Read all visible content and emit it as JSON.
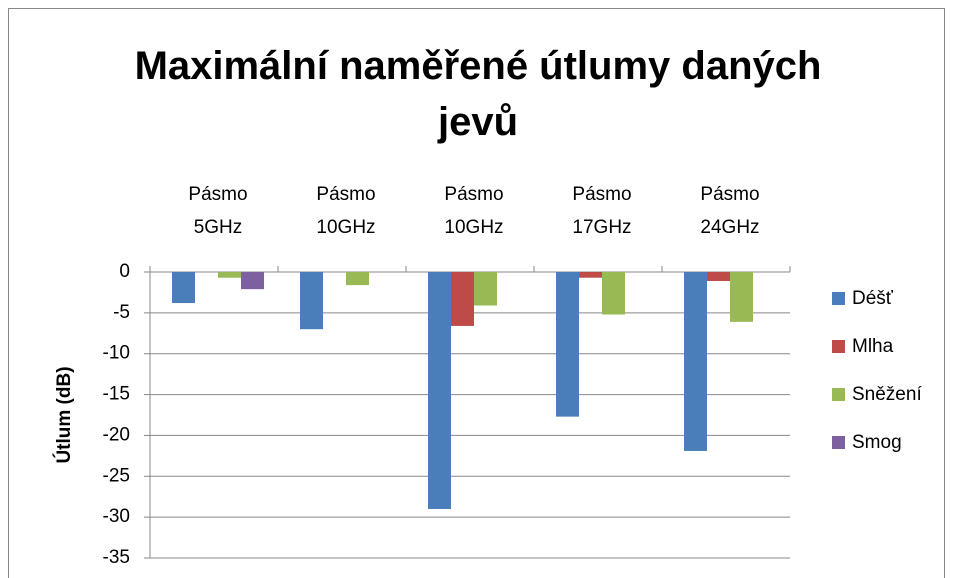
{
  "chart_data": {
    "type": "bar",
    "title": "Maximální naměřené útlumy daných jevů",
    "y_label": "Útlum (dB)",
    "categories": [
      "Pásmo 5GHz",
      "Pásmo 10GHz",
      "Pásmo 10GHz",
      "Pásmo 17GHz",
      "Pásmo 24GHz"
    ],
    "series": [
      {
        "name": "Déšť",
        "color": "#4a7ebb",
        "values": [
          -3.8,
          -7,
          -29,
          -17.7,
          -21.9
        ]
      },
      {
        "name": "Mlha",
        "color": "#be4b48",
        "values": [
          null,
          null,
          -6.6,
          -0.7,
          -1.1
        ]
      },
      {
        "name": "Sněžení",
        "color": "#98b954",
        "values": [
          -0.7,
          -1.6,
          -4.1,
          -5.2,
          -6.1
        ]
      },
      {
        "name": "Smog",
        "color": "#7d60a0",
        "values": [
          -2.1,
          null,
          null,
          null,
          null
        ]
      }
    ],
    "ylim": [
      -35,
      0
    ],
    "yticks": [
      0,
      -5,
      -10,
      -15,
      -20,
      -25,
      -30,
      -35
    ],
    "grid": true,
    "legend": "right"
  }
}
